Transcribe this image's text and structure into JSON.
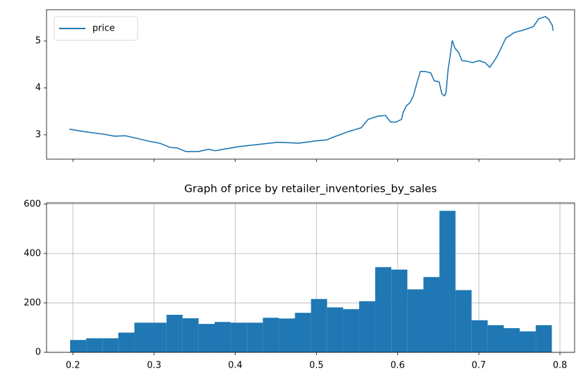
{
  "chart_data": [
    {
      "type": "line",
      "x": [
        0.1957,
        0.2128,
        0.23,
        0.2385,
        0.2514,
        0.2642,
        0.277,
        0.2942,
        0.307,
        0.3198,
        0.3284,
        0.3395,
        0.354,
        0.3669,
        0.3755,
        0.3883,
        0.4054,
        0.4268,
        0.4525,
        0.4782,
        0.4996,
        0.5124,
        0.521,
        0.5381,
        0.5552,
        0.5595,
        0.5638,
        0.5766,
        0.5852,
        0.5912,
        0.5981,
        0.6049,
        0.6066,
        0.6109,
        0.6151,
        0.6194,
        0.6237,
        0.628,
        0.634,
        0.6408,
        0.6451,
        0.6511,
        0.6545,
        0.6579,
        0.6596,
        0.6622,
        0.6648,
        0.6673,
        0.6708,
        0.675,
        0.6793,
        0.6853,
        0.6922,
        0.7007,
        0.7076,
        0.7136,
        0.7222,
        0.7333,
        0.7436,
        0.7564,
        0.7675,
        0.7735,
        0.7821,
        0.7864,
        0.7906,
        0.7915
      ],
      "series": [
        {
          "name": "price",
          "color": "#1f77b4",
          "values": [
            3.12,
            3.07,
            3.03,
            3.01,
            2.97,
            2.98,
            2.93,
            2.86,
            2.82,
            2.73,
            2.72,
            2.64,
            2.64,
            2.69,
            2.66,
            2.7,
            2.75,
            2.79,
            2.84,
            2.82,
            2.87,
            2.89,
            2.95,
            3.06,
            3.15,
            3.24,
            3.33,
            3.4,
            3.41,
            3.27,
            3.27,
            3.33,
            3.47,
            3.62,
            3.68,
            3.83,
            4.1,
            4.35,
            4.35,
            4.32,
            4.15,
            4.13,
            3.87,
            3.83,
            3.9,
            4.39,
            4.69,
            5.01,
            4.84,
            4.76,
            4.58,
            4.57,
            4.54,
            4.58,
            4.54,
            4.44,
            4.66,
            5.06,
            5.18,
            5.24,
            5.31,
            5.47,
            5.52,
            5.46,
            5.33,
            5.22
          ]
        }
      ],
      "xlim": [
        0.1675,
        0.818
      ],
      "ylim": [
        2.48,
        5.667
      ],
      "yticks": [
        3,
        4,
        5
      ],
      "grid": false,
      "legend": "upper left"
    },
    {
      "type": "histogram",
      "title": "Graph of price by retailer_inventories_by_sales",
      "color": "#1f77b4",
      "bins": [
        0.1966,
        0.2164,
        0.2362,
        0.2559,
        0.2757,
        0.2955,
        0.3153,
        0.3351,
        0.3548,
        0.3746,
        0.3944,
        0.4142,
        0.434,
        0.4537,
        0.4735,
        0.4933,
        0.5131,
        0.5329,
        0.5526,
        0.5724,
        0.5922,
        0.612,
        0.6318,
        0.6515,
        0.6713,
        0.6911,
        0.7109,
        0.7307,
        0.7504,
        0.7702,
        0.79
      ],
      "values": [
        50,
        57,
        57,
        80,
        120,
        120,
        152,
        138,
        115,
        123,
        120,
        120,
        140,
        137,
        160,
        216,
        182,
        175,
        207,
        345,
        335,
        255,
        305,
        573,
        252,
        130,
        110,
        98,
        85,
        110
      ],
      "xlim": [
        0.1675,
        0.818
      ],
      "ylim": [
        0,
        605
      ],
      "xticks": [
        0.2,
        0.3,
        0.4,
        0.5,
        0.6,
        0.7,
        0.8
      ],
      "yticks": [
        0,
        200,
        400,
        600
      ],
      "grid": true
    }
  ]
}
